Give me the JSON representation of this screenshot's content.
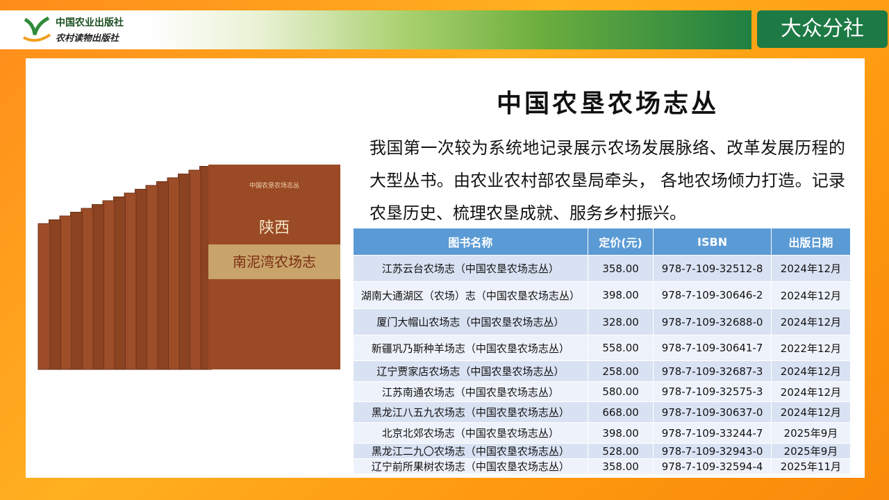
{
  "header": {
    "publisher_1": "中国农业出版社",
    "publisher_2": "农村读物出版社",
    "branch": "大众分社"
  },
  "title": "中国农垦农场志丛",
  "description": "我国第一次较为系统地记录展示农场发展脉络、改革发展历程的大型丛书。由农业农村部农垦局牵头， 各地农场倾力打造。记录农垦历史、梳理农垦成就、服务乡村振兴。",
  "book_cover": {
    "series": "中国农垦农场志丛",
    "province": "陕西",
    "name": "南泥湾农场志"
  },
  "table": {
    "columns": [
      "图书名称",
      "定价(元)",
      "ISBN",
      "出版日期"
    ],
    "rows": [
      [
        "江苏云台农场志（中国农垦农场志丛）",
        "358.00",
        "978-7-109-32512-8",
        "2024年12月"
      ],
      [
        "湖南大通湖区（农场）志（中国农垦农场志丛）",
        "398.00",
        "978-7-109-30646-2",
        "2024年12月"
      ],
      [
        "厦门大帽山农场志（中国农垦农场志丛）",
        "328.00",
        "978-7-109-32688-0",
        "2024年12月"
      ],
      [
        "新疆巩乃斯种羊场志（中国农垦农场志丛）",
        "558.00",
        "978-7-109-30641-7",
        "2022年12月"
      ],
      [
        "辽宁贾家店农场志（中国农垦农场志丛）",
        "258.00",
        "978-7-109-32687-3",
        "2024年12月"
      ],
      [
        "江苏南通农场志（中国农垦农场志丛）",
        "580.00",
        "978-7-109-32575-3",
        "2024年12月"
      ],
      [
        "黑龙江八五九农场志（中国农垦农场志丛）",
        "668.00",
        "978-7-109-30637-0",
        "2024年12月"
      ],
      [
        "北京北郊农场志（中国农垦农场志丛）",
        "398.00",
        "978-7-109-33244-7",
        "2025年9月"
      ],
      [
        "黑龙江二九〇农场志（中国农垦农场志丛）",
        "528.00",
        "978-7-109-32943-0",
        "2025年9月"
      ],
      [
        "辽宁前所果树农场志（中国农垦农场志丛）",
        "358.00",
        "978-7-109-32594-4",
        "2025年11月"
      ]
    ]
  }
}
